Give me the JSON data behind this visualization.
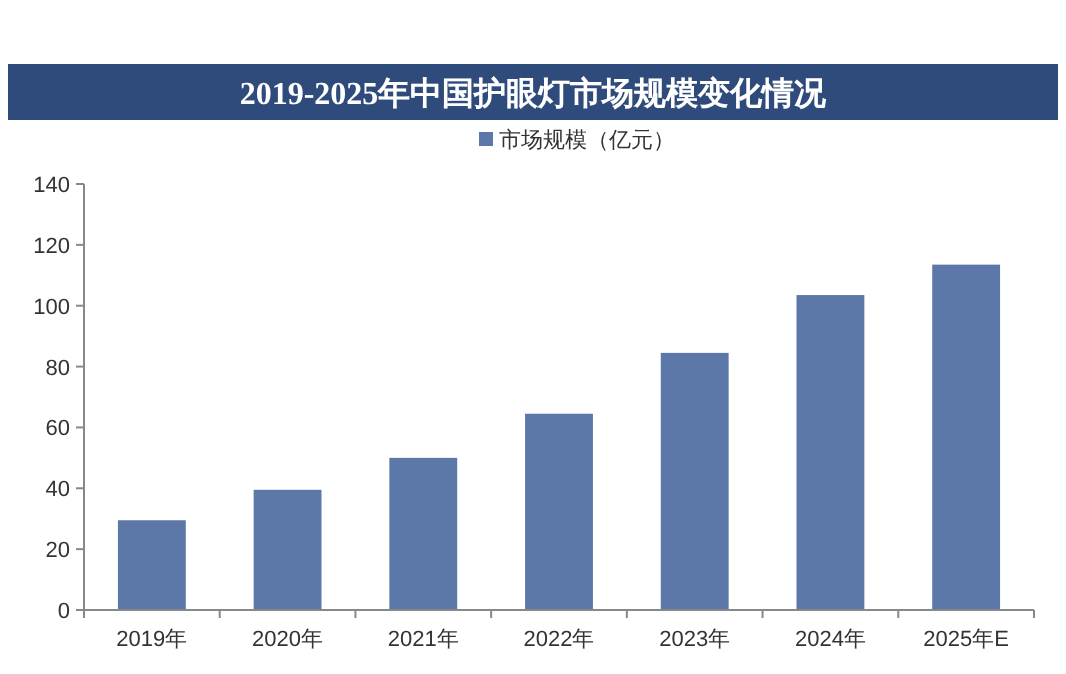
{
  "chart_data": {
    "type": "bar",
    "title": "2019-2025年中国护眼灯市场规模变化情况",
    "categories": [
      "2019年",
      "2020年",
      "2021年",
      "2022年",
      "2023年",
      "2024年",
      "2025年E"
    ],
    "series": [
      {
        "name": "市场规模（亿元）",
        "color": "#5b78a8",
        "values": [
          29.5,
          39.5,
          50,
          64.5,
          84.5,
          103.5,
          113.5
        ]
      }
    ],
    "ylim": [
      0,
      140
    ],
    "yticks": [
      0,
      20,
      40,
      60,
      80,
      100,
      120,
      140
    ],
    "legend": "top",
    "grid": false
  }
}
